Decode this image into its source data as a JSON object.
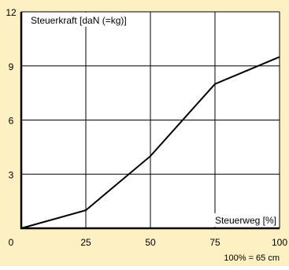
{
  "chart_data": {
    "type": "line",
    "title": "",
    "ylabel": "Steuerkraft [daN (=kg)]",
    "xlabel": "Steuerweg [%]",
    "note": "100% = 65 cm",
    "x": [
      0,
      25,
      50,
      75,
      100
    ],
    "series": [
      {
        "values": [
          0,
          1,
          4,
          8,
          9.5
        ]
      }
    ],
    "xlim": [
      0,
      100
    ],
    "ylim": [
      0,
      12
    ],
    "xticks": [
      "0",
      "25",
      "50",
      "75",
      "100"
    ],
    "yticks": [
      "3",
      "6",
      "9",
      "12"
    ],
    "grid": true
  },
  "colors": {
    "background": "#fdf0c2",
    "plot": "#ffffff",
    "line": "#000000",
    "grid": "#000000"
  }
}
